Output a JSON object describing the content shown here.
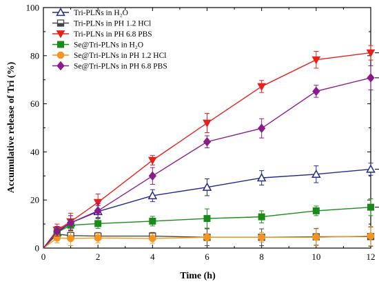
{
  "chart_data": {
    "type": "line",
    "xlabel": "Time (h)",
    "ylabel": "Accumulative release of Tri (%)",
    "xlim": [
      0,
      12
    ],
    "ylim": [
      0,
      100
    ],
    "x_ticks": [
      0,
      2,
      4,
      6,
      8,
      10,
      12
    ],
    "y_ticks": [
      0,
      20,
      40,
      60,
      80,
      100
    ],
    "grid": false,
    "legend_position": "top-left",
    "x": [
      0,
      0.5,
      1,
      2,
      4,
      6,
      8,
      10,
      12
    ],
    "series": [
      {
        "name": "Tri-PLNs in H₂O",
        "color": "#1f2a8c",
        "marker": "triangle-up-open",
        "values": [
          0,
          6.5,
          10.5,
          15.2,
          21.8,
          25.3,
          29.2,
          30.7,
          32.8
        ],
        "errors": [
          0,
          2.5,
          3.0,
          2.5,
          2.5,
          3.5,
          3.0,
          3.5,
          2.5
        ]
      },
      {
        "name": "Tri-PLNs in PH 1.2 HCl",
        "color": "#444444",
        "marker": "square-half",
        "values": [
          0,
          5.8,
          5.2,
          5.0,
          5.0,
          4.5,
          4.5,
          4.7,
          4.8
        ],
        "errors": [
          0,
          2.0,
          2.0,
          1.5,
          1.5,
          3.5,
          3.5,
          3.5,
          4.0
        ]
      },
      {
        "name": "Tri-PLNs in PH 6.8 PBS",
        "color": "#e8201a",
        "marker": "triangle-down",
        "values": [
          0,
          7.5,
          11.0,
          19.0,
          36.5,
          52.0,
          67.2,
          78.3,
          81.2
        ],
        "errors": [
          0,
          2.5,
          3.5,
          3.5,
          2.0,
          4.0,
          2.5,
          3.5,
          3.0
        ]
      },
      {
        "name": "Se@Tri-PLNs in H₂O",
        "color": "#1a8a1a",
        "marker": "square",
        "values": [
          0,
          6.5,
          9.5,
          10.2,
          11.2,
          12.3,
          13.0,
          15.5,
          17.0
        ],
        "errors": [
          0,
          2.0,
          2.5,
          2.0,
          2.0,
          4.0,
          2.5,
          2.0,
          3.5
        ]
      },
      {
        "name": "Se@Tri-PLNs in PH 1.2 HCl",
        "color": "#f5941e",
        "marker": "circle",
        "values": [
          0,
          4.2,
          4.0,
          4.2,
          4.0,
          4.5,
          4.5,
          4.5,
          5.0
        ],
        "errors": [
          0,
          2.0,
          3.0,
          2.0,
          2.0,
          1.5,
          2.0,
          3.5,
          4.0
        ]
      },
      {
        "name": "Se@Tri-PLNs in PH 6.8 PBS",
        "color": "#8b1a8b",
        "marker": "diamond",
        "values": [
          0,
          7.0,
          10.5,
          15.5,
          30.0,
          44.2,
          49.8,
          65.2,
          70.8
        ],
        "errors": [
          0,
          2.0,
          3.0,
          3.0,
          3.5,
          2.5,
          4.0,
          2.5,
          5.0
        ]
      }
    ],
    "annotations": [
      {
        "text": "**",
        "between": [
          "Tri-PLNs in PH 6.8 PBS",
          "Se@Tri-PLNs in PH 6.8 PBS"
        ]
      },
      {
        "text": "**",
        "between": [
          "Tri-PLNs in H₂O",
          "Se@Tri-PLNs in H₂O"
        ]
      }
    ]
  }
}
